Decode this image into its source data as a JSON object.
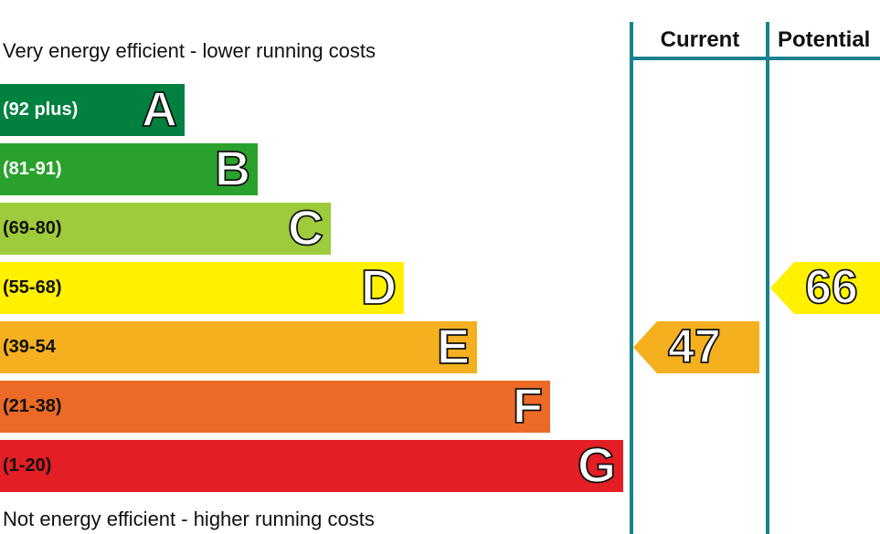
{
  "header": {
    "current_label": "Current",
    "potential_label": "Potential"
  },
  "captions": {
    "top": "Very energy efficient - lower running costs",
    "bottom": "Not energy efficient - higher running costs"
  },
  "chart_data": {
    "type": "bar",
    "categories": [
      "A",
      "B",
      "C",
      "D",
      "E",
      "F",
      "G"
    ],
    "ranges": [
      "(92 plus)",
      "(81-91)",
      "(69-80)",
      "(55-68)",
      "(39-54",
      "(21-38)",
      "(1-20)"
    ],
    "colors": [
      "#008140",
      "#2aa12c",
      "#9dcb3b",
      "#fff100",
      "#f5b01f",
      "#ec6a25",
      "#e31e25"
    ],
    "range_text_colors": [
      "#ffffff",
      "#ffffff",
      "#111111",
      "#111111",
      "#111111",
      "#111111",
      "#111111"
    ],
    "current": {
      "value": 47,
      "band": "E",
      "color": "#f5b01f"
    },
    "potential": {
      "value": 66,
      "band": "D",
      "color": "#fff100"
    }
  }
}
